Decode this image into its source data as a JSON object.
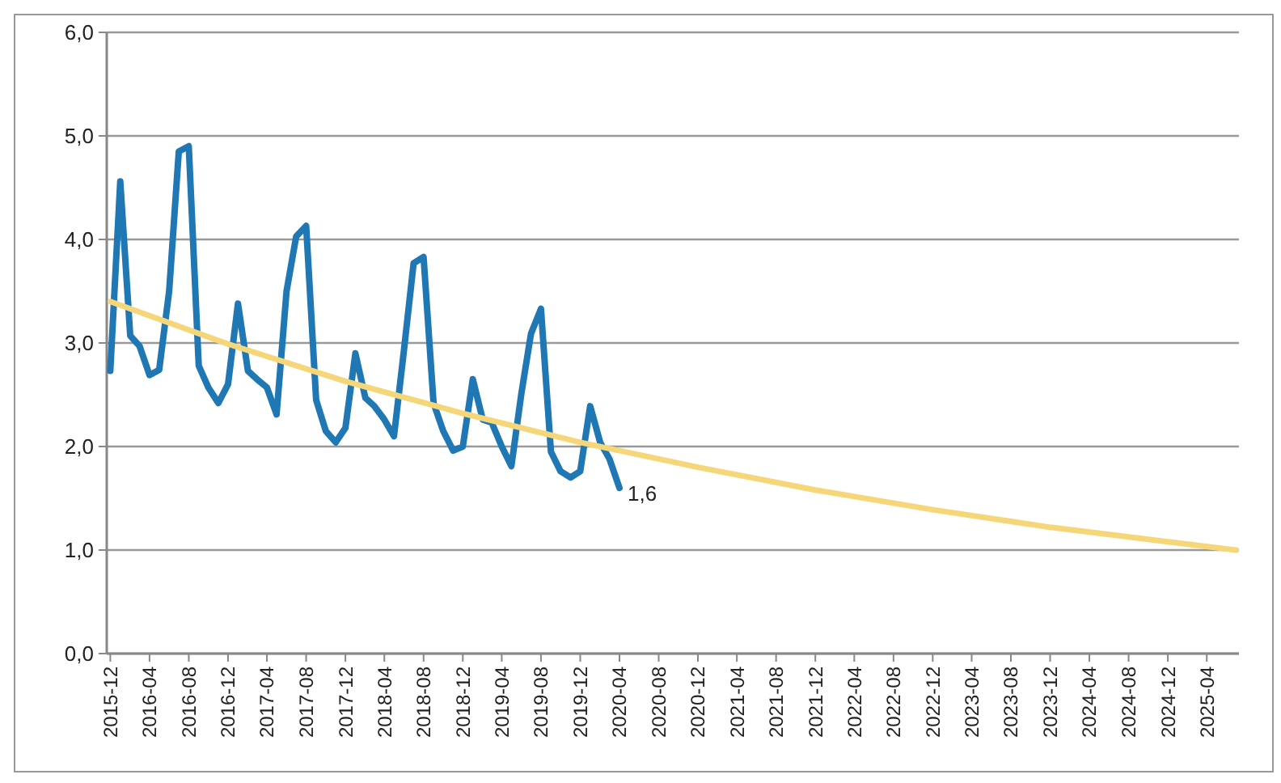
{
  "chart_data": {
    "type": "line",
    "xlim": [
      "2015-11-20",
      "2025-07-10"
    ],
    "ylim": [
      0,
      6
    ],
    "yticks": [
      {
        "value": 0,
        "label": "0,0"
      },
      {
        "value": 1,
        "label": "1,0"
      },
      {
        "value": 2,
        "label": "2,0"
      },
      {
        "value": 3,
        "label": "3,0"
      },
      {
        "value": 4,
        "label": "4,0"
      },
      {
        "value": 5,
        "label": "5,0"
      },
      {
        "value": 6,
        "label": "6,0"
      }
    ],
    "xticks": [
      "2015-12",
      "2016-04",
      "2016-08",
      "2016-12",
      "2017-04",
      "2017-08",
      "2017-12",
      "2018-04",
      "2018-08",
      "2018-12",
      "2019-04",
      "2019-08",
      "2019-12",
      "2020-04",
      "2020-08",
      "2020-12",
      "2021-04",
      "2021-08",
      "2021-12",
      "2022-04",
      "2022-08",
      "2022-12",
      "2023-04",
      "2023-08",
      "2023-12",
      "2024-04",
      "2024-08",
      "2024-12",
      "2025-04"
    ],
    "grid": "y",
    "marker": "none",
    "line_style": "solid",
    "series": [
      {
        "color": "#1f77b4",
        "x": [
          "2015-12",
          "2016-01",
          "2016-02",
          "2016-03",
          "2016-04",
          "2016-05",
          "2016-06",
          "2016-07",
          "2016-08",
          "2016-09",
          "2016-10",
          "2016-11",
          "2016-12",
          "2017-01",
          "2017-02",
          "2017-03",
          "2017-04",
          "2017-05",
          "2017-06",
          "2017-07",
          "2017-08",
          "2017-09",
          "2017-10",
          "2017-11",
          "2017-12",
          "2018-01",
          "2018-02",
          "2018-03",
          "2018-04",
          "2018-05",
          "2018-06",
          "2018-07",
          "2018-08",
          "2018-09",
          "2018-10",
          "2018-11",
          "2018-12",
          "2019-01",
          "2019-02",
          "2019-03",
          "2019-04",
          "2019-05",
          "2019-06",
          "2019-07",
          "2019-08",
          "2019-09",
          "2019-10",
          "2019-11",
          "2019-12",
          "2020-01",
          "2020-02",
          "2020-03",
          "2020-04"
        ],
        "values": [
          2.73,
          4.56,
          3.07,
          2.97,
          2.69,
          2.74,
          3.5,
          4.85,
          4.9,
          2.78,
          2.57,
          2.42,
          2.6,
          3.38,
          2.73,
          2.65,
          2.57,
          2.31,
          3.5,
          4.03,
          4.13,
          2.45,
          2.15,
          2.04,
          2.18,
          2.9,
          2.47,
          2.39,
          2.26,
          2.1,
          2.93,
          3.77,
          3.83,
          2.42,
          2.15,
          1.96,
          2.0,
          2.65,
          2.26,
          2.23,
          2.0,
          1.81,
          2.51,
          3.09,
          3.33,
          1.95,
          1.76,
          1.7,
          1.76,
          2.39,
          2.04,
          1.88,
          1.6
        ]
      },
      {
        "color": "#f5d77a",
        "x": [
          "2015-12",
          "2016-12",
          "2017-12",
          "2018-12",
          "2019-12",
          "2020-12",
          "2021-12",
          "2022-12",
          "2023-12",
          "2024-12",
          "2025-07"
        ],
        "values": [
          3.4,
          2.99,
          2.63,
          2.32,
          2.04,
          1.8,
          1.58,
          1.39,
          1.22,
          1.08,
          1.0
        ]
      }
    ],
    "annotations": [
      {
        "text": "1,6",
        "x": "2020-04",
        "y": 1.6
      }
    ]
  }
}
